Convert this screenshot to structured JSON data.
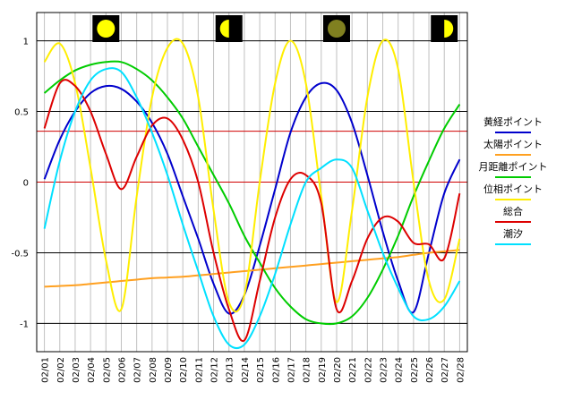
{
  "chart_data": {
    "type": "line",
    "title": "",
    "xlabel": "",
    "ylabel": "",
    "ylim": [
      -1.2,
      1.2
    ],
    "yticks": [
      1,
      0.5,
      0,
      -0.5,
      -1
    ],
    "ytick_labels": [
      "1",
      "0.5",
      "0",
      "-0.5",
      "-1"
    ],
    "x": [
      "02/01",
      "02/02",
      "02/03",
      "02/04",
      "02/05",
      "02/06",
      "02/07",
      "02/08",
      "02/09",
      "02/10",
      "02/11",
      "02/12",
      "02/13",
      "02/14",
      "02/15",
      "02/16",
      "02/17",
      "02/18",
      "02/19",
      "02/20",
      "02/21",
      "02/22",
      "02/23",
      "02/24",
      "02/25",
      "02/26",
      "02/27",
      "02/28"
    ],
    "reference_lines": [
      {
        "value": 0.36,
        "color": "#d00000"
      },
      {
        "value": 0,
        "color": "#d00000"
      }
    ],
    "legend_placement": "right",
    "series": [
      {
        "name": "黄経ポイント",
        "color": "#0000cc",
        "values": [
          0.02,
          0.3,
          0.5,
          0.63,
          0.68,
          0.66,
          0.57,
          0.42,
          0.2,
          -0.1,
          -0.4,
          -0.72,
          -0.93,
          -0.8,
          -0.45,
          -0.05,
          0.35,
          0.6,
          0.7,
          0.65,
          0.42,
          0.05,
          -0.35,
          -0.7,
          -0.92,
          -0.5,
          -0.08,
          0.16
        ]
      },
      {
        "name": "太陽ポイント",
        "color": "#ffa020",
        "values": [
          -0.74,
          -0.735,
          -0.73,
          -0.72,
          -0.71,
          -0.7,
          -0.69,
          -0.68,
          -0.675,
          -0.67,
          -0.66,
          -0.65,
          -0.64,
          -0.63,
          -0.62,
          -0.61,
          -0.6,
          -0.59,
          -0.58,
          -0.57,
          -0.56,
          -0.55,
          -0.54,
          -0.53,
          -0.515,
          -0.5,
          -0.49,
          -0.48
        ]
      },
      {
        "name": "月距離ポイント",
        "color": "#00cc00",
        "values": [
          0.63,
          0.72,
          0.79,
          0.83,
          0.85,
          0.85,
          0.8,
          0.72,
          0.6,
          0.45,
          0.25,
          0.05,
          -0.15,
          -0.38,
          -0.57,
          -0.75,
          -0.88,
          -0.97,
          -1.0,
          -1.0,
          -0.95,
          -0.82,
          -0.62,
          -0.38,
          -0.1,
          0.15,
          0.38,
          0.55
        ]
      },
      {
        "name": "位相ポイント",
        "color": "#ffee00",
        "values": [
          0.85,
          0.98,
          0.7,
          0.1,
          -0.55,
          -0.9,
          -0.1,
          0.6,
          0.95,
          0.98,
          0.6,
          -0.2,
          -0.85,
          -0.8,
          0.0,
          0.7,
          1.0,
          0.7,
          -0.1,
          -0.85,
          -0.2,
          0.6,
          1.0,
          0.8,
          0.0,
          -0.7,
          -0.83,
          -0.4
        ]
      },
      {
        "name": "総合",
        "color": "#dd0000",
        "values": [
          0.38,
          0.7,
          0.68,
          0.5,
          0.2,
          -0.05,
          0.18,
          0.4,
          0.45,
          0.3,
          0.0,
          -0.5,
          -0.9,
          -1.12,
          -0.7,
          -0.25,
          0.02,
          0.05,
          -0.15,
          -0.9,
          -0.7,
          -0.4,
          -0.25,
          -0.28,
          -0.43,
          -0.44,
          -0.54,
          -0.08
        ]
      },
      {
        "name": "潮汐",
        "color": "#00e0ff",
        "values": [
          -0.33,
          0.15,
          0.5,
          0.72,
          0.8,
          0.78,
          0.6,
          0.35,
          0.05,
          -0.3,
          -0.63,
          -0.95,
          -1.15,
          -1.15,
          -0.95,
          -0.65,
          -0.3,
          0.0,
          0.1,
          0.16,
          0.1,
          -0.2,
          -0.5,
          -0.75,
          -0.95,
          -0.97,
          -0.88,
          -0.7
        ]
      }
    ],
    "moon_phases": [
      {
        "x": "02/05",
        "phase": "full"
      },
      {
        "x": "02/13",
        "phase": "last-quarter"
      },
      {
        "x": "02/20",
        "phase": "new"
      },
      {
        "x": "02/27",
        "phase": "first-quarter"
      }
    ]
  }
}
